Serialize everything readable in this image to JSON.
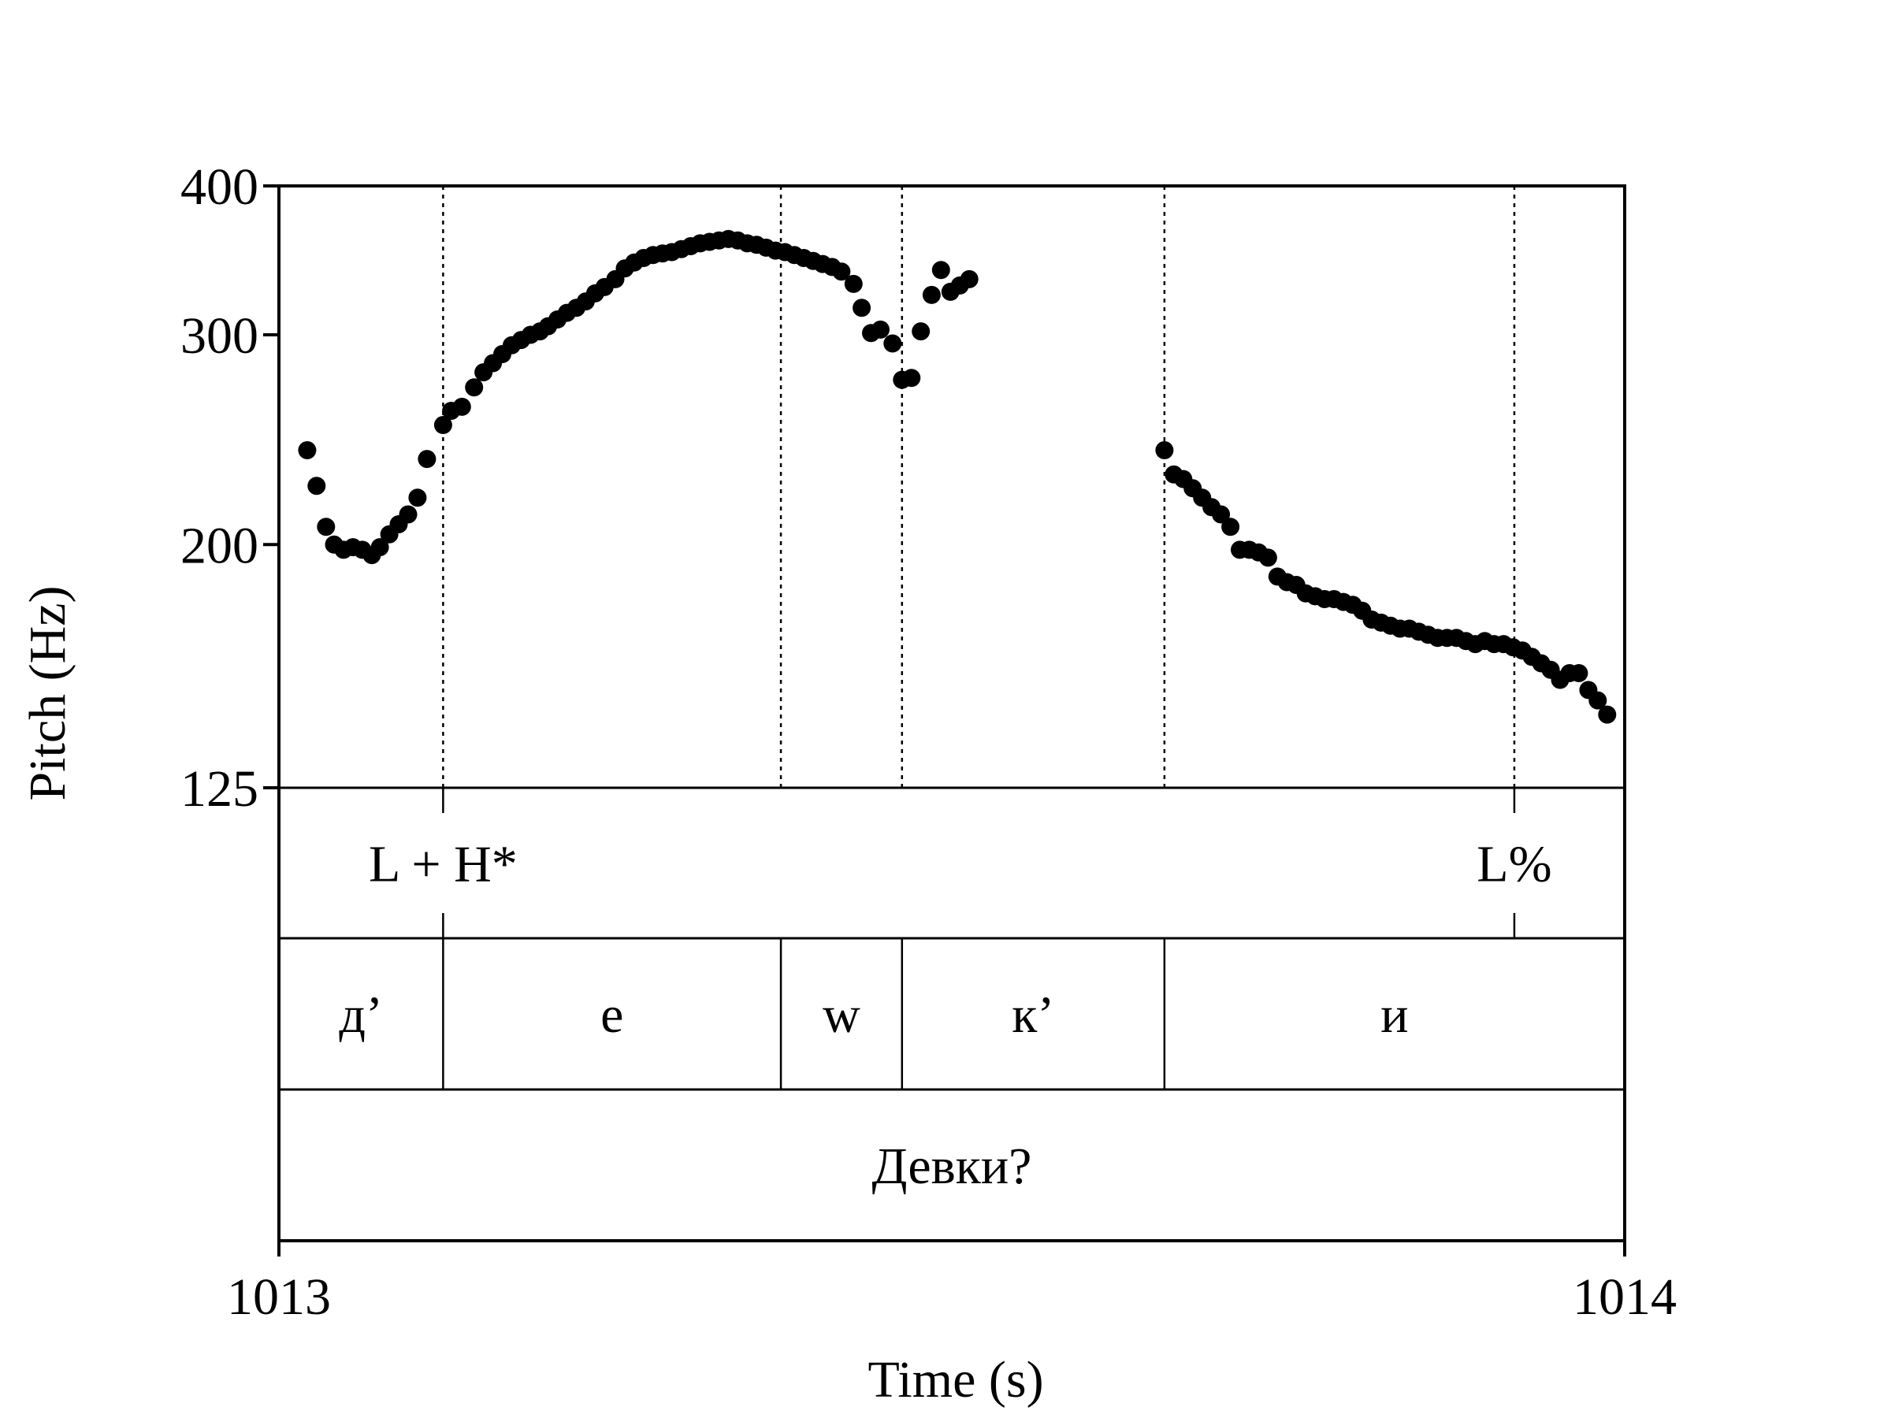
{
  "chart_data": {
    "type": "scatter",
    "xlabel": "Time (s)",
    "ylabel": "Pitch (Hz)",
    "xlim": [
      1013,
      1014
    ],
    "ylim": [
      125,
      400
    ],
    "x_ticks": [
      "1013",
      "1014"
    ],
    "y_ticks": [
      "400",
      "300",
      "200",
      "125"
    ],
    "y_tick_values": [
      400,
      300,
      200,
      125
    ],
    "boundaries": [
      1013.122,
      1013.373,
      1013.463,
      1013.658,
      1013.918
    ],
    "tones": [
      {
        "label": "L + H*",
        "time": 1013.122
      },
      {
        "label": "L%",
        "time": 1013.918
      }
    ],
    "segments": [
      {
        "label": "д’",
        "start": 1013.0,
        "end": 1013.122
      },
      {
        "label": "е",
        "start": 1013.122,
        "end": 1013.373
      },
      {
        "label": "w",
        "start": 1013.373,
        "end": 1013.463
      },
      {
        "label": "к’",
        "start": 1013.463,
        "end": 1013.658
      },
      {
        "label": "и",
        "start": 1013.658,
        "end": 1014.0
      }
    ],
    "word": {
      "label": "Девки?",
      "start": 1013.0,
      "end": 1014.0
    },
    "points": [
      [
        1013.021,
        240
      ],
      [
        1013.028,
        224
      ],
      [
        1013.035,
        207
      ],
      [
        1013.041,
        200
      ],
      [
        1013.048,
        198
      ],
      [
        1013.055,
        199
      ],
      [
        1013.062,
        198
      ],
      [
        1013.069,
        196
      ],
      [
        1013.075,
        199
      ],
      [
        1013.082,
        204
      ],
      [
        1013.089,
        208
      ],
      [
        1013.096,
        212
      ],
      [
        1013.103,
        219
      ],
      [
        1013.11,
        236
      ],
      [
        1013.122,
        252
      ],
      [
        1013.128,
        259
      ],
      [
        1013.136,
        261
      ],
      [
        1013.145,
        271
      ],
      [
        1013.152,
        279
      ],
      [
        1013.159,
        284
      ],
      [
        1013.166,
        289
      ],
      [
        1013.173,
        294
      ],
      [
        1013.18,
        297
      ],
      [
        1013.187,
        300
      ],
      [
        1013.194,
        302
      ],
      [
        1013.2,
        305
      ],
      [
        1013.207,
        309
      ],
      [
        1013.214,
        313
      ],
      [
        1013.221,
        316
      ],
      [
        1013.228,
        320
      ],
      [
        1013.235,
        325
      ],
      [
        1013.242,
        329
      ],
      [
        1013.25,
        334
      ],
      [
        1013.257,
        341
      ],
      [
        1013.264,
        345
      ],
      [
        1013.271,
        348
      ],
      [
        1013.278,
        350
      ],
      [
        1013.285,
        351
      ],
      [
        1013.292,
        352
      ],
      [
        1013.299,
        354
      ],
      [
        1013.306,
        356
      ],
      [
        1013.313,
        358
      ],
      [
        1013.32,
        359
      ],
      [
        1013.327,
        360
      ],
      [
        1013.334,
        361
      ],
      [
        1013.341,
        360
      ],
      [
        1013.348,
        358
      ],
      [
        1013.355,
        357
      ],
      [
        1013.362,
        355
      ],
      [
        1013.369,
        353
      ],
      [
        1013.376,
        352
      ],
      [
        1013.383,
        350
      ],
      [
        1013.39,
        348
      ],
      [
        1013.397,
        346
      ],
      [
        1013.404,
        344
      ],
      [
        1013.411,
        342
      ],
      [
        1013.418,
        339
      ],
      [
        1013.427,
        331
      ],
      [
        1013.433,
        316
      ],
      [
        1013.44,
        301
      ],
      [
        1013.447,
        303
      ],
      [
        1013.456,
        295
      ],
      [
        1013.463,
        275
      ],
      [
        1013.47,
        276
      ],
      [
        1013.477,
        302
      ],
      [
        1013.485,
        324
      ],
      [
        1013.492,
        340
      ],
      [
        1013.499,
        326
      ],
      [
        1013.506,
        330
      ],
      [
        1013.513,
        334
      ],
      [
        1013.658,
        240
      ],
      [
        1013.665,
        229
      ],
      [
        1013.672,
        227
      ],
      [
        1013.679,
        223
      ],
      [
        1013.686,
        219
      ],
      [
        1013.693,
        215
      ],
      [
        1013.7,
        212
      ],
      [
        1013.707,
        207
      ],
      [
        1013.714,
        198
      ],
      [
        1013.721,
        198
      ],
      [
        1013.728,
        197
      ],
      [
        1013.735,
        195
      ],
      [
        1013.742,
        188
      ],
      [
        1013.749,
        186
      ],
      [
        1013.756,
        185
      ],
      [
        1013.763,
        182
      ],
      [
        1013.77,
        181
      ],
      [
        1013.777,
        180
      ],
      [
        1013.784,
        180
      ],
      [
        1013.791,
        179
      ],
      [
        1013.798,
        178
      ],
      [
        1013.805,
        176
      ],
      [
        1013.812,
        173
      ],
      [
        1013.819,
        172
      ],
      [
        1013.826,
        171
      ],
      [
        1013.833,
        170
      ],
      [
        1013.84,
        170
      ],
      [
        1013.847,
        169
      ],
      [
        1013.854,
        168
      ],
      [
        1013.861,
        167
      ],
      [
        1013.868,
        167
      ],
      [
        1013.875,
        167
      ],
      [
        1013.882,
        166
      ],
      [
        1013.889,
        165
      ],
      [
        1013.896,
        166
      ],
      [
        1013.903,
        165
      ],
      [
        1013.91,
        165
      ],
      [
        1013.917,
        164
      ],
      [
        1013.924,
        163
      ],
      [
        1013.931,
        161
      ],
      [
        1013.938,
        159
      ],
      [
        1013.945,
        157
      ],
      [
        1013.952,
        154
      ],
      [
        1013.959,
        156
      ],
      [
        1013.966,
        156
      ],
      [
        1013.973,
        151
      ],
      [
        1013.98,
        148
      ],
      [
        1013.987,
        144
      ]
    ]
  }
}
